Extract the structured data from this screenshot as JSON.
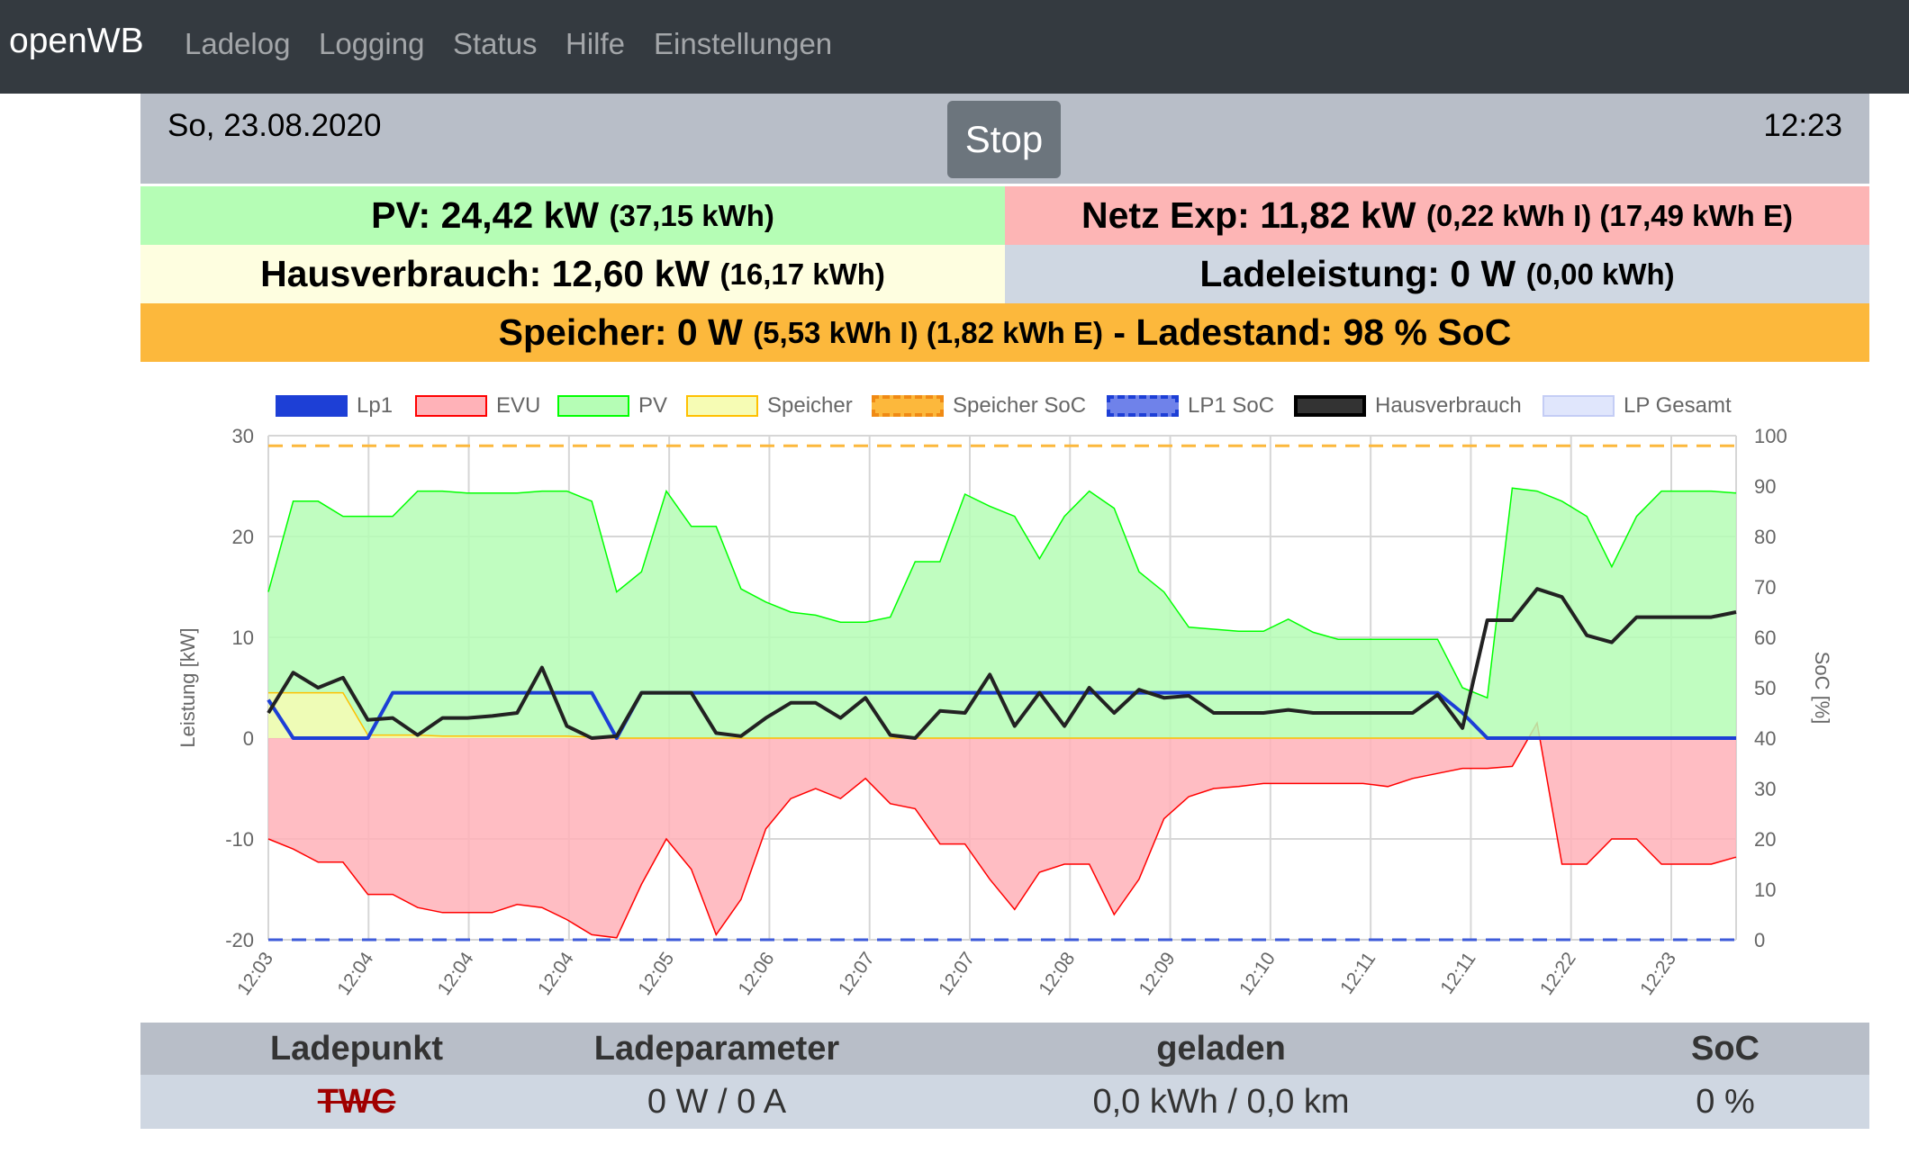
{
  "nav": {
    "brand": "openWB",
    "links": [
      "Ladelog",
      "Logging",
      "Status",
      "Hilfe",
      "Einstellungen"
    ]
  },
  "header": {
    "date": "So, 23.08.2020",
    "time": "12:23",
    "stop_label": "Stop"
  },
  "summary": {
    "pv_main": "PV: 24,42 kW",
    "pv_sub": "(37,15 kWh)",
    "netz_main": "Netz Exp: 11,82 kW",
    "netz_sub": "(0,22 kWh I) (17,49 kWh E)",
    "haus_main": "Hausverbrauch: 12,60 kW",
    "haus_sub": "(16,17 kWh)",
    "lade_main": "Ladeleistung: 0 W",
    "lade_sub": "(0,00 kWh)",
    "speicher_a": "Speicher: 0 W",
    "speicher_b": "(5,53 kWh I) (1,82 kWh E)",
    "speicher_c": "- Ladestand: 98 % SoC"
  },
  "colors": {
    "pv_bg": "#b5fdb5",
    "netz_bg": "#fdb5b5",
    "haus_bg": "#fefee0",
    "lade_bg": "#cfd7e2",
    "speicher_bg": "#fcb83c"
  },
  "chart_data": {
    "type": "line",
    "ylabel": "Leistung [kW]",
    "y2label": "SoC [%]",
    "ylim": [
      -20,
      30
    ],
    "y2lim": [
      0,
      100
    ],
    "yticks": [
      30,
      20,
      10,
      0,
      -10,
      -20
    ],
    "y2ticks": [
      100,
      90,
      80,
      70,
      60,
      50,
      40,
      30,
      20,
      10,
      0
    ],
    "legend_position": "top",
    "grid": true,
    "x_tick_labels": [
      "12:03",
      "12:04",
      "12:04",
      "12:04",
      "12:05",
      "12:06",
      "12:07",
      "12:07",
      "12:08",
      "12:09",
      "12:10",
      "12:11",
      "12:11",
      "12:22",
      "12:23"
    ],
    "x_count": 60,
    "series": [
      {
        "name": "Lp1",
        "color": "#1d3fd6",
        "axis": "y",
        "values": [
          3.8,
          0,
          0,
          0,
          0,
          4.5,
          4.5,
          4.5,
          4.5,
          4.5,
          4.5,
          4.5,
          4.5,
          4.5,
          0,
          4.5,
          4.5,
          4.5,
          4.5,
          4.5,
          4.5,
          4.5,
          4.5,
          4.5,
          4.5,
          4.5,
          4.5,
          4.5,
          4.5,
          4.5,
          4.5,
          4.5,
          4.5,
          4.5,
          4.5,
          4.5,
          4.5,
          4.5,
          4.5,
          4.5,
          4.5,
          4.5,
          4.5,
          4.5,
          4.5,
          4.5,
          4.5,
          4.5,
          2.5,
          0,
          0,
          0,
          0,
          0,
          0,
          0,
          0,
          0,
          0,
          0
        ]
      },
      {
        "name": "EVU",
        "color": "#ff0000",
        "axis": "y",
        "fill": "#ffb2b8",
        "values": [
          -10,
          -11,
          -12.3,
          -12.3,
          -15.5,
          -15.5,
          -16.8,
          -17.3,
          -17.3,
          -17.3,
          -16.5,
          -16.8,
          -18,
          -19.5,
          -19.8,
          -14.5,
          -10,
          -13,
          -19.5,
          -16,
          -9,
          -6,
          -5,
          -6,
          -4,
          -6.5,
          -7,
          -10.5,
          -10.5,
          -14,
          -17,
          -13.3,
          -12.5,
          -12.5,
          -17.5,
          -14,
          -8,
          -5.8,
          -5,
          -4.8,
          -4.5,
          -4.5,
          -4.5,
          -4.5,
          -4.5,
          -4.8,
          -4,
          -3.5,
          -3,
          -3,
          -2.8,
          1.5,
          -12.5,
          -12.5,
          -10,
          -10,
          -12.5,
          -12.5,
          -12.5,
          -11.8
        ]
      },
      {
        "name": "PV",
        "color": "#00ff00",
        "axis": "y",
        "fill": "#b5fdb5",
        "values": [
          14.5,
          23.5,
          23.5,
          22,
          22,
          22,
          24.5,
          24.5,
          24.3,
          24.3,
          24.3,
          24.5,
          24.5,
          23.5,
          14.5,
          16.5,
          24.5,
          21,
          21,
          14.8,
          13.5,
          12.5,
          12.2,
          11.5,
          11.5,
          12,
          17.5,
          17.5,
          24.2,
          23,
          22,
          17.8,
          22,
          24.5,
          22.8,
          16.5,
          14.5,
          11,
          10.8,
          10.6,
          10.6,
          11.8,
          10.5,
          9.8,
          9.8,
          9.8,
          9.8,
          9.8,
          5,
          4,
          24.8,
          24.5,
          23.5,
          22,
          17,
          22,
          24.5,
          24.5,
          24.5,
          24.3
        ]
      },
      {
        "name": "Speicher",
        "color": "#ffc000",
        "axis": "y",
        "fill": "#f6fcb4",
        "values": [
          4.5,
          4.5,
          4.5,
          4.5,
          0.3,
          0.3,
          0.3,
          0.2,
          0.2,
          0.2,
          0.2,
          0.2,
          0.2,
          0.1,
          0,
          0,
          0,
          0,
          0,
          0,
          0,
          0,
          0,
          0,
          0,
          0,
          0,
          0,
          0,
          0,
          0,
          0,
          0,
          0,
          0,
          0,
          0,
          0,
          0,
          0,
          0,
          0,
          0,
          0,
          0,
          0,
          0,
          0,
          0,
          0,
          0,
          0,
          0,
          0,
          0,
          0,
          0,
          0,
          0,
          0
        ]
      },
      {
        "name": "Speicher SoC",
        "color": "#fcb83c",
        "axis": "y2",
        "dashed": true,
        "values": [
          98,
          98,
          98,
          98,
          98,
          98,
          98,
          98,
          98,
          98,
          98,
          98,
          98,
          98,
          98,
          98,
          98,
          98,
          98,
          98,
          98,
          98,
          98,
          98,
          98,
          98,
          98,
          98,
          98,
          98,
          98,
          98,
          98,
          98,
          98,
          98,
          98,
          98,
          98,
          98,
          98,
          98,
          98,
          98,
          98,
          98,
          98,
          98,
          98,
          98,
          98,
          98,
          98,
          98,
          98,
          98,
          98,
          98,
          98,
          98
        ]
      },
      {
        "name": "LP1 SoC",
        "color": "#3e5bd9",
        "axis": "y2",
        "dashed": true,
        "values": [
          0,
          0,
          0,
          0,
          0,
          0,
          0,
          0,
          0,
          0,
          0,
          0,
          0,
          0,
          0,
          0,
          0,
          0,
          0,
          0,
          0,
          0,
          0,
          0,
          0,
          0,
          0,
          0,
          0,
          0,
          0,
          0,
          0,
          0,
          0,
          0,
          0,
          0,
          0,
          0,
          0,
          0,
          0,
          0,
          0,
          0,
          0,
          0,
          0,
          0,
          0,
          0,
          0,
          0,
          0,
          0,
          0,
          0,
          0,
          0
        ]
      },
      {
        "name": "Hausverbrauch",
        "color": "#000000",
        "axis": "y",
        "values": [
          2.5,
          6.5,
          5,
          6,
          1.8,
          2,
          0.3,
          2,
          2,
          2.2,
          2.5,
          7,
          1.2,
          0,
          0.2,
          4.5,
          4.5,
          4.5,
          0.5,
          0.2,
          2,
          3.5,
          3.5,
          2,
          4,
          0.3,
          0,
          2.7,
          2.5,
          6.3,
          1.2,
          4.5,
          1.2,
          5,
          2.5,
          4.8,
          4,
          4.2,
          2.5,
          2.5,
          2.5,
          2.8,
          2.5,
          2.5,
          2.5,
          2.5,
          2.5,
          4.3,
          1,
          11.7,
          11.7,
          14.8,
          14,
          10.2,
          9.5,
          12,
          12,
          12,
          12,
          12.5
        ]
      },
      {
        "name": "LP Gesamt",
        "color": "#aab8f6",
        "axis": "y",
        "fill": "#e0e6fc",
        "values": []
      }
    ]
  },
  "table": {
    "headers": [
      "Ladepunkt",
      "Ladeparameter",
      "geladen",
      "SoC"
    ],
    "row": {
      "name": "TWC",
      "param": "0 W / 0 A",
      "geladen": "0,0 kWh / 0,0 km",
      "soc": "0 %"
    }
  }
}
